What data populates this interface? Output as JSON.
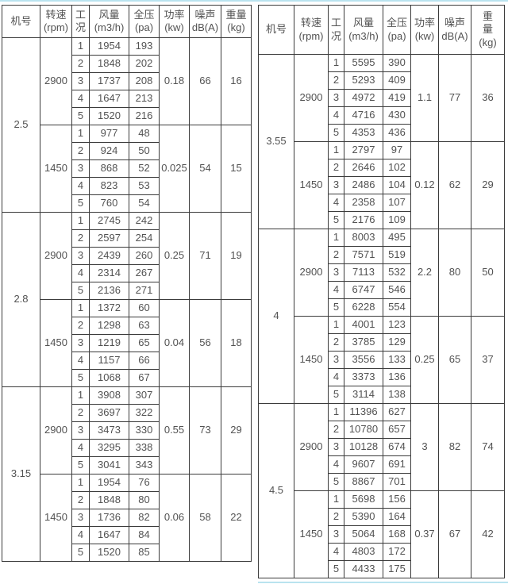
{
  "tables": [
    {
      "name": "spec-table-left",
      "header_columns": [
        [
          "机号"
        ],
        [
          "转速",
          "(rpm)"
        ],
        [
          "工",
          "况"
        ],
        [
          "风量",
          "(m3/h)"
        ],
        [
          "全压",
          "(pa)"
        ],
        [
          "功率",
          "(kw)"
        ],
        [
          "噪声",
          "dB(A)"
        ],
        [
          "重量",
          "(kg)"
        ]
      ],
      "blocks": [
        {
          "model": "2.5",
          "speeds": [
            {
              "rpm": "2900",
              "rows": [
                [
                  1,
                  1954,
                  193
                ],
                [
                  2,
                  1848,
                  202
                ],
                [
                  3,
                  1737,
                  208
                ],
                [
                  4,
                  1647,
                  213
                ],
                [
                  5,
                  1520,
                  216
                ]
              ],
              "power": "0.18",
              "noise": "66",
              "weight": "16"
            },
            {
              "rpm": "1450",
              "rows": [
                [
                  1,
                  977,
                  48
                ],
                [
                  2,
                  924,
                  50
                ],
                [
                  3,
                  868,
                  52
                ],
                [
                  4,
                  823,
                  53
                ],
                [
                  5,
                  760,
                  54
                ]
              ],
              "power": "0.025",
              "noise": "54",
              "weight": "15"
            }
          ]
        },
        {
          "model": "2.8",
          "speeds": [
            {
              "rpm": "2900",
              "rows": [
                [
                  1,
                  2745,
                  242
                ],
                [
                  2,
                  2597,
                  254
                ],
                [
                  3,
                  2439,
                  260
                ],
                [
                  4,
                  2314,
                  267
                ],
                [
                  5,
                  2136,
                  271
                ]
              ],
              "power": "0.25",
              "noise": "71",
              "weight": "19"
            },
            {
              "rpm": "1450",
              "rows": [
                [
                  1,
                  1372,
                  60
                ],
                [
                  2,
                  1298,
                  63
                ],
                [
                  3,
                  1219,
                  65
                ],
                [
                  4,
                  1157,
                  66
                ],
                [
                  5,
                  1068,
                  67
                ]
              ],
              "power": "0.04",
              "noise": "56",
              "weight": "18"
            }
          ]
        },
        {
          "model": "3.15",
          "speeds": [
            {
              "rpm": "2900",
              "rows": [
                [
                  1,
                  3908,
                  307
                ],
                [
                  2,
                  3697,
                  322
                ],
                [
                  3,
                  3473,
                  330
                ],
                [
                  4,
                  3295,
                  338
                ],
                [
                  5,
                  3041,
                  343
                ]
              ],
              "power": "0.55",
              "noise": "73",
              "weight": "29"
            },
            {
              "rpm": "1450",
              "rows": [
                [
                  1,
                  1954,
                  76
                ],
                [
                  2,
                  1848,
                  80
                ],
                [
                  3,
                  1736,
                  82
                ],
                [
                  4,
                  1647,
                  84
                ],
                [
                  5,
                  1520,
                  85
                ]
              ],
              "power": "0.06",
              "noise": "58",
              "weight": "22"
            }
          ]
        }
      ]
    },
    {
      "name": "spec-table-right",
      "header_columns": [
        [
          "机号"
        ],
        [
          "转速",
          "(rpm)"
        ],
        [
          "工",
          "况"
        ],
        [
          "风量",
          "(m3/h)"
        ],
        [
          "全压",
          "(pa)"
        ],
        [
          "功率",
          "(kw)"
        ],
        [
          "噪声",
          "dB(A)"
        ],
        [
          "重",
          "量",
          "(kg)"
        ]
      ],
      "blocks": [
        {
          "model": "3.55",
          "speeds": [
            {
              "rpm": "2900",
              "rows": [
                [
                  1,
                  5595,
                  390
                ],
                [
                  2,
                  5293,
                  409
                ],
                [
                  3,
                  4972,
                  419
                ],
                [
                  4,
                  4716,
                  430
                ],
                [
                  5,
                  4353,
                  436
                ]
              ],
              "power": "1.1",
              "noise": "77",
              "weight": "36"
            },
            {
              "rpm": "1450",
              "rows": [
                [
                  1,
                  2797,
                  97
                ],
                [
                  2,
                  2646,
                  102
                ],
                [
                  3,
                  2486,
                  104
                ],
                [
                  4,
                  2358,
                  107
                ],
                [
                  5,
                  2176,
                  109
                ]
              ],
              "power": "0.12",
              "noise": "62",
              "weight": "29"
            }
          ]
        },
        {
          "model": "4",
          "speeds": [
            {
              "rpm": "2900",
              "rows": [
                [
                  1,
                  8003,
                  495
                ],
                [
                  2,
                  7571,
                  519
                ],
                [
                  3,
                  7113,
                  532
                ],
                [
                  4,
                  6747,
                  546
                ],
                [
                  5,
                  6228,
                  554
                ]
              ],
              "power": "2.2",
              "noise": "80",
              "weight": "50"
            },
            {
              "rpm": "1450",
              "rows": [
                [
                  1,
                  4001,
                  123
                ],
                [
                  2,
                  3785,
                  129
                ],
                [
                  3,
                  3556,
                  133
                ],
                [
                  4,
                  3373,
                  136
                ],
                [
                  5,
                  3114,
                  138
                ]
              ],
              "power": "0.25",
              "noise": "65",
              "weight": "37"
            }
          ]
        },
        {
          "model": "4.5",
          "speeds": [
            {
              "rpm": "2900",
              "rows": [
                [
                  1,
                  11396,
                  627
                ],
                [
                  2,
                  10780,
                  657
                ],
                [
                  3,
                  10128,
                  674
                ],
                [
                  4,
                  9607,
                  691
                ],
                [
                  5,
                  8867,
                  701
                ]
              ],
              "power": "3",
              "noise": "82",
              "weight": "74"
            },
            {
              "rpm": "1450",
              "rows": [
                [
                  1,
                  5698,
                  156
                ],
                [
                  2,
                  5390,
                  164
                ],
                [
                  3,
                  5064,
                  168
                ],
                [
                  4,
                  4803,
                  172
                ],
                [
                  5,
                  4433,
                  175
                ]
              ],
              "power": "0.37",
              "noise": "67",
              "weight": "42"
            }
          ]
        }
      ]
    }
  ]
}
